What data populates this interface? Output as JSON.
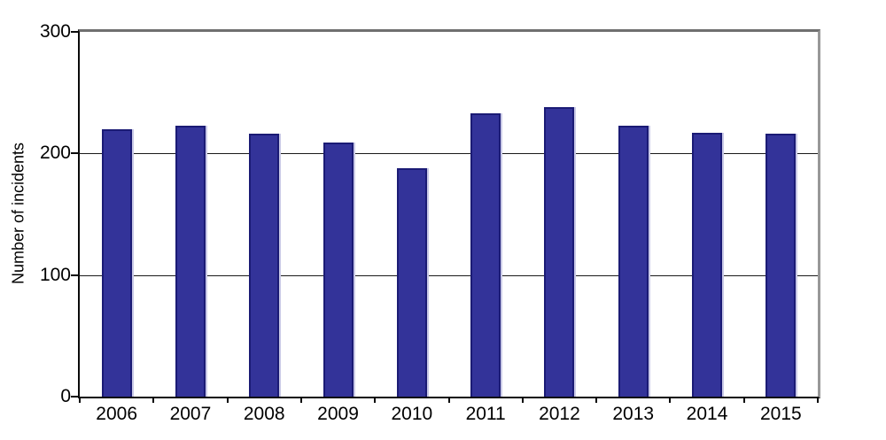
{
  "chart_data": {
    "type": "bar",
    "title": "",
    "categories": [
      "2006",
      "2007",
      "2008",
      "2009",
      "2010",
      "2011",
      "2012",
      "2013",
      "2014",
      "2015"
    ],
    "values": [
      220,
      223,
      216,
      209,
      188,
      233,
      238,
      223,
      217,
      216
    ],
    "xlabel": "",
    "ylabel": "Number of incidents",
    "ylim": [
      0,
      300
    ],
    "yticks": [
      0,
      100,
      200,
      300
    ],
    "gridlines_at": [
      100,
      200
    ],
    "grid": "horizontal",
    "legend_position": "none",
    "bar_color": "#333399",
    "bar_border_color": "#1b1b75",
    "axis_color": "#0a0a0a",
    "frame_top_right_color": "#6f6f6f",
    "background_color": "#ffffff"
  }
}
